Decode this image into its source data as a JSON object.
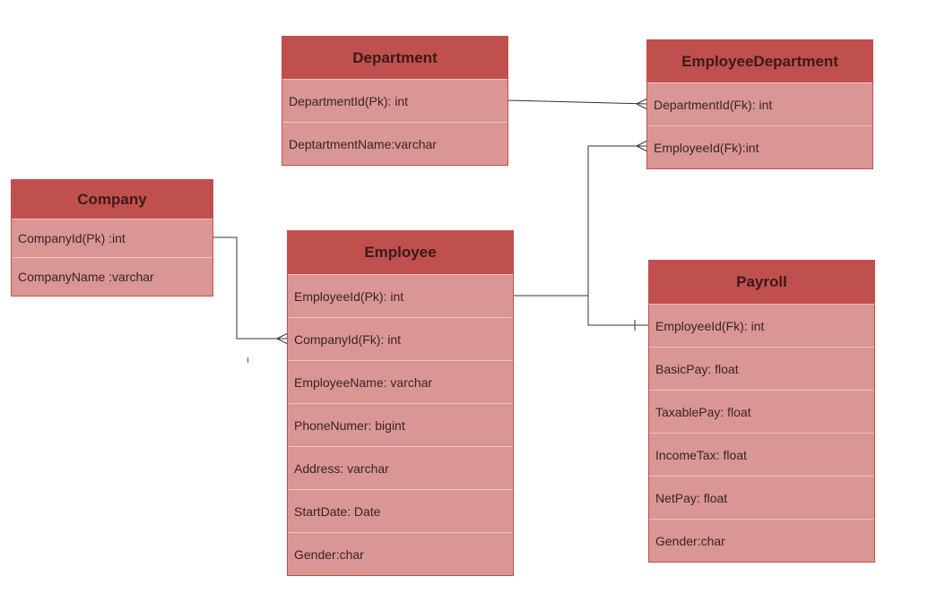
{
  "entities": {
    "department": {
      "title": "Department",
      "fields": [
        "DepartmentId(Pk): int",
        "DeptartmentName:varchar"
      ]
    },
    "employee_department": {
      "title": "EmployeeDepartment",
      "fields": [
        "DepartmentId(Fk): int",
        "EmployeeId(Fk):int"
      ]
    },
    "company": {
      "title": "Company",
      "fields": [
        "CompanyId(Pk) :int",
        "CompanyName :varchar"
      ]
    },
    "employee": {
      "title": "Employee",
      "fields": [
        "EmployeeId(Pk): int",
        "CompanyId(Fk): int",
        "EmployeeName: varchar",
        "PhoneNumer: bigint",
        "Address: varchar",
        "StartDate: Date",
        "Gender:char"
      ]
    },
    "payroll": {
      "title": "Payroll",
      "fields": [
        "EmployeeId(Fk): int",
        "BasicPay: float",
        "TaxablePay: float",
        "IncomeTax: float",
        "NetPay: float",
        "Gender:char"
      ]
    }
  },
  "colors": {
    "header": "#c0504d",
    "body": "#d99694",
    "connector": "#333333"
  }
}
